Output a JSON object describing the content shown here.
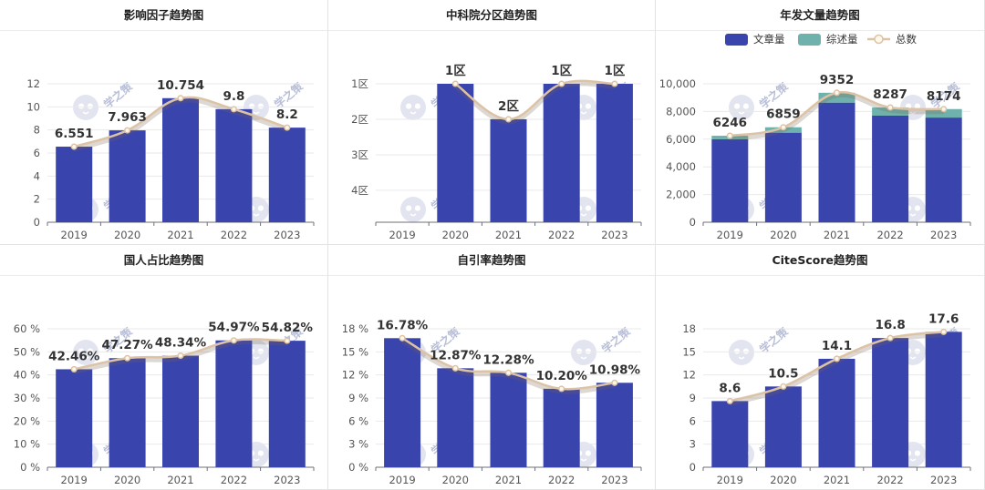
{
  "colors": {
    "bar": "#3a44ad",
    "review": "#6fb2ad",
    "line": "#dcc3a6",
    "point_fill": "#fff7ea",
    "grid": "#e9e9e9",
    "axis": "#6e7079",
    "watermark": "#dfe3ef"
  },
  "watermark": {
    "text": "学之策",
    "icon": "owl-logo-icon"
  },
  "chart_data": [
    {
      "id": "impact",
      "type": "bar",
      "title": "影响因子趋势图",
      "categories": [
        "2019",
        "2020",
        "2021",
        "2022",
        "2023"
      ],
      "values": [
        6.551,
        7.963,
        10.754,
        9.8,
        8.2
      ],
      "labels": [
        "6.551",
        "7.963",
        "10.754",
        "9.8",
        "8.2"
      ],
      "ylim": [
        0,
        12
      ],
      "yticks": [
        0,
        2,
        4,
        6,
        8,
        10,
        12
      ],
      "ytick_labels": [
        "0",
        "2",
        "4",
        "6",
        "8",
        "10",
        "12"
      ],
      "trend_line": true,
      "grid": true
    },
    {
      "id": "cas",
      "type": "bar",
      "title": "中科院分区趋势图",
      "categories": [
        "2019",
        "2020",
        "2021",
        "2022",
        "2023"
      ],
      "values": [
        null,
        1,
        2,
        1,
        1
      ],
      "labels": [
        "",
        "1区",
        "2区",
        "1区",
        "1区"
      ],
      "ylim": [
        4.9,
        1
      ],
      "reversed": true,
      "yticks": [
        1,
        2,
        3,
        4
      ],
      "ytick_labels": [
        "1区",
        "2区",
        "3区",
        "4区"
      ],
      "trend_line": true,
      "grid": true
    },
    {
      "id": "articles",
      "type": "bar",
      "stacked": true,
      "title": "年发文量趋势图",
      "categories": [
        "2019",
        "2020",
        "2021",
        "2022",
        "2023"
      ],
      "series": [
        {
          "name": "文章量",
          "values": [
            5990,
            6470,
            8640,
            7700,
            7560
          ]
        },
        {
          "name": "综述量",
          "values": [
            256,
            389,
            712,
            587,
            614
          ]
        }
      ],
      "totals_name": "总数",
      "totals": [
        6246,
        6859,
        9352,
        8287,
        8174
      ],
      "labels": [
        "6246",
        "6859",
        "9352",
        "8287",
        "8174"
      ],
      "ylim": [
        0,
        10000
      ],
      "yticks": [
        0,
        2000,
        4000,
        6000,
        8000,
        10000
      ],
      "ytick_labels": [
        "0",
        "2,000",
        "4,000",
        "6,000",
        "8,000",
        "10,000"
      ],
      "legend": "top-right",
      "trend_line": true,
      "grid": true
    },
    {
      "id": "domestic",
      "type": "bar",
      "title": "国人占比趋势图",
      "categories": [
        "2019",
        "2020",
        "2021",
        "2022",
        "2023"
      ],
      "values": [
        42.46,
        47.27,
        48.34,
        54.97,
        54.82
      ],
      "labels": [
        "42.46%",
        "47.27%",
        "48.34%",
        "54.97%",
        "54.82%"
      ],
      "ylim": [
        0,
        60
      ],
      "yticks": [
        0,
        10,
        20,
        30,
        40,
        50,
        60
      ],
      "ytick_labels": [
        "0 %",
        "10 %",
        "20 %",
        "30 %",
        "40 %",
        "50 %",
        "60 %"
      ],
      "trend_line": true,
      "grid": true
    },
    {
      "id": "selfcite",
      "type": "bar",
      "title": "自引率趋势图",
      "categories": [
        "2019",
        "2020",
        "2021",
        "2022",
        "2023"
      ],
      "values": [
        16.78,
        12.87,
        12.28,
        10.2,
        10.98
      ],
      "labels": [
        "16.78%",
        "12.87%",
        "12.28%",
        "10.20%",
        "10.98%"
      ],
      "ylim": [
        0,
        18
      ],
      "yticks": [
        0,
        3,
        6,
        9,
        12,
        15,
        18
      ],
      "ytick_labels": [
        "0 %",
        "3 %",
        "6 %",
        "9 %",
        "12 %",
        "15 %",
        "18 %"
      ],
      "trend_line": true,
      "grid": true
    },
    {
      "id": "citescore",
      "type": "bar",
      "title": "CiteScore趋势图",
      "categories": [
        "2019",
        "2020",
        "2021",
        "2022",
        "2023"
      ],
      "values": [
        8.6,
        10.5,
        14.1,
        16.8,
        17.6
      ],
      "labels": [
        "8.6",
        "10.5",
        "14.1",
        "16.8",
        "17.6"
      ],
      "ylim": [
        0,
        18
      ],
      "yticks": [
        0,
        3,
        6,
        9,
        12,
        15,
        18
      ],
      "ytick_labels": [
        "0",
        "3",
        "6",
        "9",
        "12",
        "15",
        "18"
      ],
      "trend_line": true,
      "grid": true
    }
  ]
}
